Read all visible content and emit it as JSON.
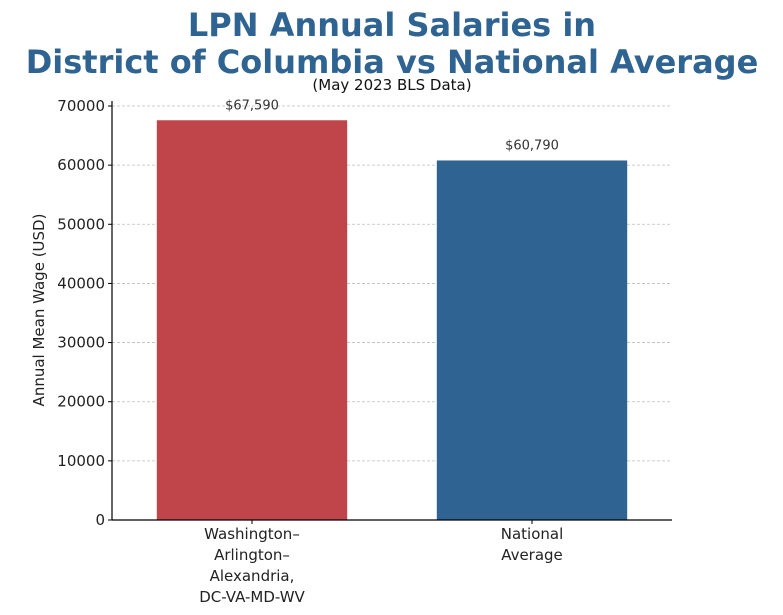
{
  "chart_data": {
    "type": "bar",
    "title_lines": [
      "LPN Annual Salaries in",
      "District of Columbia vs National Average"
    ],
    "subtitle": "(May 2023 BLS Data)",
    "xlabel": "",
    "ylabel": "Annual Mean Wage (USD)",
    "ylim": [
      0,
      70000
    ],
    "yticks": [
      0,
      10000,
      20000,
      30000,
      40000,
      50000,
      60000,
      70000
    ],
    "ytick_labels": [
      "0",
      "10000",
      "20000",
      "30000",
      "40000",
      "50000",
      "60000",
      "70000"
    ],
    "grid": "horizontal dashed",
    "categories": [
      [
        "Washington–",
        "Arlington–",
        "Alexandria,",
        "DC-VA-MD-WV"
      ],
      [
        "National",
        "Average"
      ]
    ],
    "values": [
      67590,
      60790
    ],
    "data_labels": [
      "$67,590",
      "$60,790"
    ],
    "colors": [
      "#c0454a",
      "#2e6392"
    ]
  }
}
